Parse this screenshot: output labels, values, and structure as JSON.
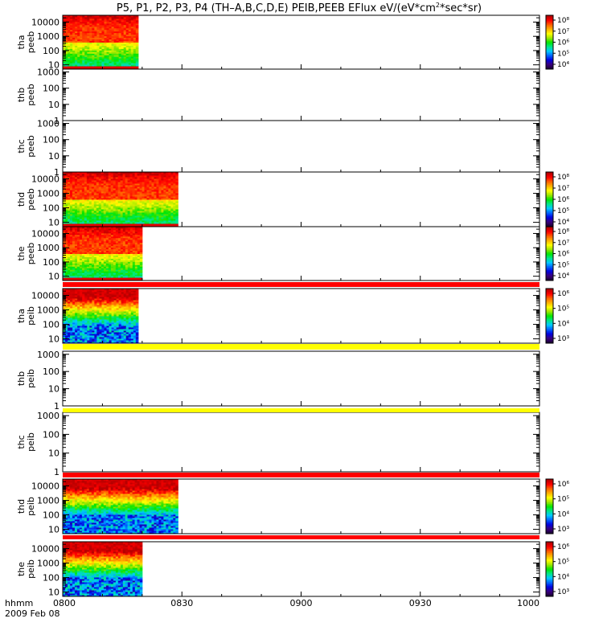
{
  "title": {
    "prefix": "P5, P1, P2, P3, P4 (TH–A,B,C,D,E) PEIB,PEEB EFlux eV/(eV*cm",
    "sup": "2",
    "suffix": "*sec*sr)"
  },
  "colors": {
    "colormap": [
      "#1a0033",
      "#3a007f",
      "#0000e0",
      "#0064ff",
      "#00c8ff",
      "#00e68c",
      "#00e600",
      "#9be600",
      "#ffff00",
      "#ffb400",
      "#ff6400",
      "#ff0000",
      "#b40000"
    ],
    "status_red": "#ff0000",
    "status_yellow": "#ffff00",
    "status_black": "#000000"
  },
  "chart_data": {
    "type": "heatmap",
    "x_axis": {
      "title": "hhmm",
      "date_label": "2009 Feb 08",
      "tick_labels": [
        "0800",
        "0830",
        "0900",
        "0930",
        "1000"
      ],
      "range": [
        "08:00",
        "10:00"
      ]
    },
    "panels": [
      {
        "probe": "tha",
        "product": "peeb",
        "ylabel": "tha\npeeb",
        "y_scale": "log",
        "y_ticks": [
          "10",
          "100",
          "1000",
          "10000"
        ],
        "y_range": [
          5,
          30000
        ],
        "data_end": "08:19",
        "has_colorbar": true,
        "colorbar_ticks": [
          "10⁸",
          "10⁷",
          "10⁶",
          "10⁵",
          "10⁴"
        ],
        "color_range_log": [
          3.5,
          8.2
        ]
      },
      {
        "probe": "thb",
        "product": "peeb",
        "ylabel": "thb\npeeb",
        "y_scale": "log",
        "y_ticks": [
          "1",
          "10",
          "100",
          "1000"
        ],
        "y_range": [
          1,
          1500
        ],
        "data_end": null,
        "has_colorbar": false
      },
      {
        "probe": "thc",
        "product": "peeb",
        "ylabel": "thc\npeeb",
        "y_scale": "log",
        "y_ticks": [
          "1",
          "10",
          "100",
          "1000"
        ],
        "y_range": [
          1,
          1500
        ],
        "data_end": null,
        "has_colorbar": false
      },
      {
        "probe": "thd",
        "product": "peeb",
        "ylabel": "thd\npeeb",
        "y_scale": "log",
        "y_ticks": [
          "10",
          "100",
          "1000",
          "10000"
        ],
        "y_range": [
          5,
          30000
        ],
        "data_end": "08:29",
        "has_colorbar": true,
        "colorbar_ticks": [
          "10⁸",
          "10⁷",
          "10⁶",
          "10⁵",
          "10⁴"
        ],
        "color_range_log": [
          3.5,
          8.2
        ]
      },
      {
        "probe": "the",
        "product": "peeb",
        "ylabel": "the\npeeb",
        "y_scale": "log",
        "y_ticks": [
          "10",
          "100",
          "1000",
          "10000"
        ],
        "y_range": [
          5,
          30000
        ],
        "data_end": "08:20",
        "has_colorbar": true,
        "colorbar_ticks": [
          "10⁸",
          "10⁷",
          "10⁶",
          "10⁵",
          "10⁴"
        ],
        "color_range_log": [
          3.5,
          8.2
        ]
      },
      {
        "probe": "tha",
        "product": "peib",
        "ylabel": "tha\npeib",
        "y_scale": "log",
        "y_ticks": [
          "10",
          "100",
          "1000",
          "10000"
        ],
        "y_range": [
          5,
          30000
        ],
        "data_end": "08:19",
        "has_colorbar": true,
        "colorbar_ticks": [
          "10⁶",
          "10⁵",
          "10⁴",
          "10³"
        ],
        "color_range_log": [
          2.8,
          6.3
        ]
      },
      {
        "probe": "thb",
        "product": "peib",
        "ylabel": "thb\npeib",
        "y_scale": "log",
        "y_ticks": [
          "1",
          "10",
          "100",
          "1000"
        ],
        "y_range": [
          1,
          1500
        ],
        "data_end": null,
        "has_colorbar": false
      },
      {
        "probe": "thc",
        "product": "peib",
        "ylabel": "thc\npeib",
        "y_scale": "log",
        "y_ticks": [
          "1",
          "10",
          "100",
          "1000"
        ],
        "y_range": [
          1,
          1500
        ],
        "data_end": null,
        "has_colorbar": false
      },
      {
        "probe": "thd",
        "product": "peib",
        "ylabel": "thd\npeib",
        "y_scale": "log",
        "y_ticks": [
          "10",
          "100",
          "1000",
          "10000"
        ],
        "y_range": [
          5,
          30000
        ],
        "data_end": "08:29",
        "has_colorbar": true,
        "colorbar_ticks": [
          "10⁶",
          "10⁵",
          "10⁴",
          "10³"
        ],
        "color_range_log": [
          2.8,
          6.3
        ]
      },
      {
        "probe": "the",
        "product": "peib",
        "ylabel": "the\npeib",
        "y_scale": "log",
        "y_ticks": [
          "10",
          "100",
          "1000",
          "10000"
        ],
        "y_range": [
          5,
          30000
        ],
        "data_end": "08:20",
        "has_colorbar": true,
        "colorbar_ticks": [
          "10⁶",
          "10⁵",
          "10⁴",
          "10³"
        ],
        "color_range_log": [
          2.8,
          6.3
        ]
      }
    ],
    "status_bars": [
      {
        "after_panel": 4,
        "color": "red",
        "span": [
          "08:00",
          "10:00"
        ]
      },
      {
        "after_panel": 5,
        "color": "yellow",
        "span": [
          "08:00",
          "10:00"
        ]
      },
      {
        "after_panel": 6,
        "color": "yellow",
        "span": [
          "08:00",
          "10:00"
        ]
      },
      {
        "after_panel": 7,
        "color": "red",
        "span": [
          "08:00",
          "10:00"
        ]
      },
      {
        "after_panel": 8,
        "color": "red",
        "span": [
          "08:00",
          "10:00"
        ]
      }
    ],
    "grid": false,
    "legend": "colorbars-right"
  }
}
